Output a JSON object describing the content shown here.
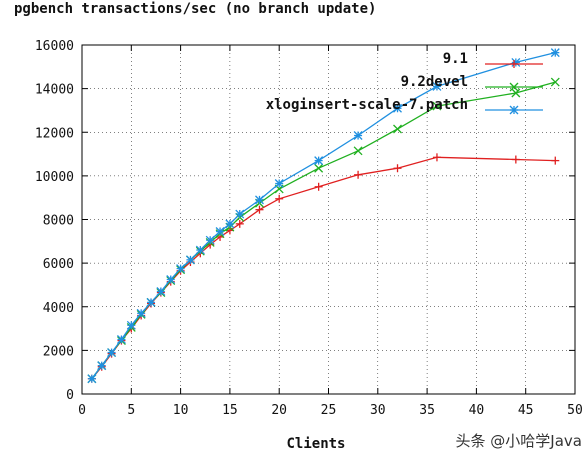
{
  "chart_data": {
    "type": "line",
    "title": "pgbench transactions/sec (no branch update)",
    "xlabel": "Clients",
    "ylabel": "",
    "xlim": [
      0,
      50
    ],
    "ylim": [
      0,
      16000
    ],
    "xticks": [
      0,
      5,
      10,
      15,
      20,
      25,
      30,
      35,
      40,
      45,
      50
    ],
    "yticks": [
      0,
      2000,
      4000,
      6000,
      8000,
      10000,
      12000,
      14000,
      16000
    ],
    "xtick_labels": [
      "0",
      "5",
      "10",
      "15",
      "20",
      "25",
      "30",
      "35",
      "40",
      "45",
      "50"
    ],
    "ytick_labels": [
      "0",
      "2000",
      "4000",
      "6000",
      "8000",
      "10000",
      "12000",
      "14000",
      "16000"
    ],
    "grid": true,
    "legend_position": "top-right",
    "series": [
      {
        "name": "9.1",
        "color": "#e02020",
        "marker": "plus",
        "x": [
          1,
          2,
          3,
          4,
          5,
          6,
          7,
          8,
          9,
          10,
          11,
          12,
          13,
          14,
          15,
          16,
          18,
          20,
          24,
          28,
          32,
          36,
          44,
          48
        ],
        "y": [
          700,
          1250,
          1850,
          2450,
          3000,
          3600,
          4150,
          4650,
          5150,
          5650,
          6050,
          6450,
          6850,
          7200,
          7500,
          7800,
          8450,
          8950,
          9500,
          10050,
          10350,
          10850,
          10750,
          10700
        ]
      },
      {
        "name": "9.2devel",
        "color": "#20b020",
        "marker": "cross",
        "x": [
          1,
          2,
          3,
          4,
          5,
          6,
          7,
          8,
          9,
          10,
          11,
          12,
          13,
          14,
          15,
          16,
          18,
          20,
          24,
          28,
          32,
          36,
          44,
          48
        ],
        "y": [
          700,
          1300,
          1900,
          2450,
          3050,
          3650,
          4200,
          4650,
          5200,
          5700,
          6150,
          6550,
          6950,
          7350,
          7650,
          8100,
          8750,
          9400,
          10350,
          11150,
          12150,
          13200,
          13800,
          14300
        ]
      },
      {
        "name": "xloginsert-scale-7.patch",
        "color": "#2090e0",
        "marker": "star",
        "x": [
          1,
          2,
          3,
          4,
          5,
          6,
          7,
          8,
          9,
          10,
          11,
          12,
          13,
          14,
          15,
          16,
          18,
          20,
          24,
          28,
          32,
          36,
          44,
          48
        ],
        "y": [
          700,
          1300,
          1900,
          2500,
          3150,
          3700,
          4200,
          4700,
          5250,
          5750,
          6150,
          6600,
          7050,
          7450,
          7800,
          8250,
          8900,
          9650,
          10700,
          11850,
          13100,
          14100,
          15200,
          15650
        ]
      }
    ]
  },
  "watermark": "头条 @小哈学Java"
}
